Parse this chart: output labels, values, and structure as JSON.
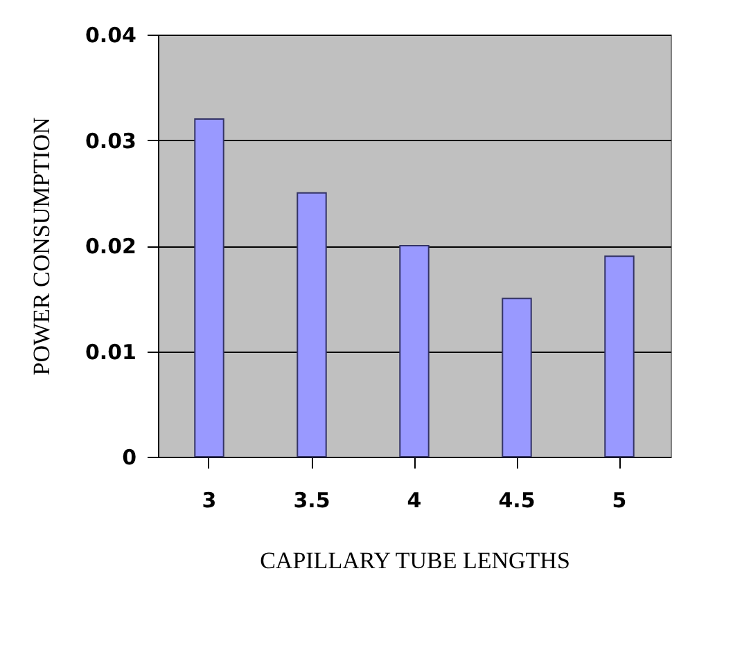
{
  "chart_data": {
    "type": "bar",
    "xlabel": "CAPILLARY TUBE LENGTHS",
    "ylabel": "POWER CONSUMPTION",
    "categories": [
      "3",
      "3.5",
      "4",
      "4.5",
      "5"
    ],
    "values": [
      0.032,
      0.025,
      0.02,
      0.015,
      0.019
    ],
    "color": "#9999ff",
    "ylim": [
      0,
      0.04
    ],
    "yticks": [
      0,
      0.01,
      0.02,
      0.03,
      0.04
    ],
    "grid": "y"
  }
}
